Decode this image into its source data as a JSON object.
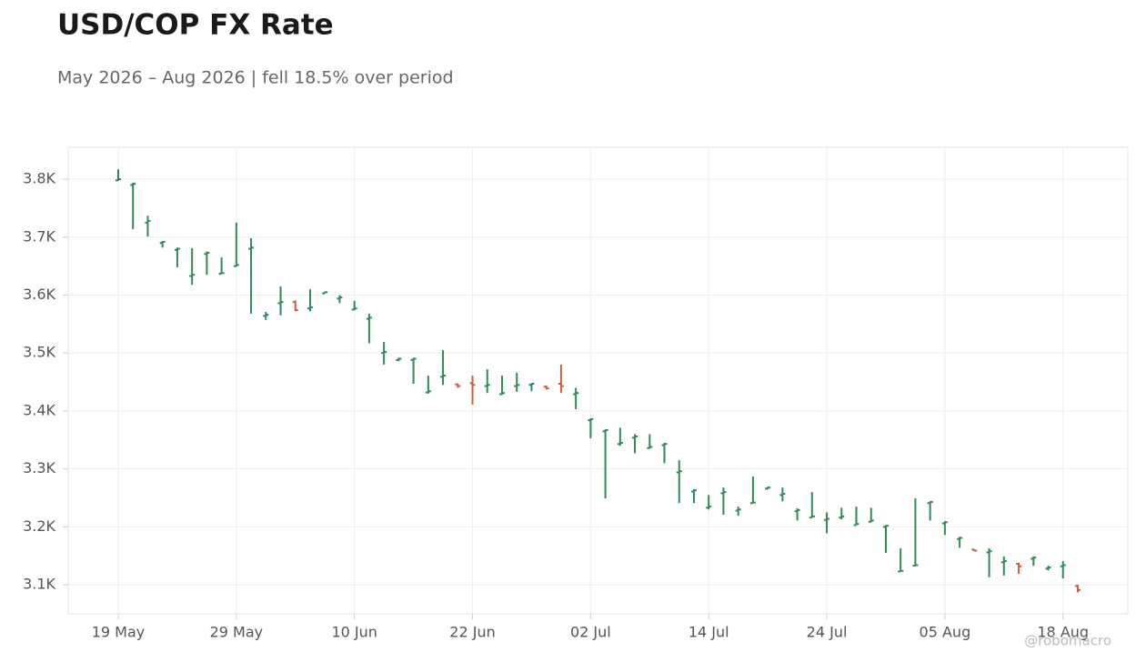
{
  "chart_data": {
    "type": "ohlc",
    "title": "USD/COP FX Rate",
    "subtitle": "May 2026 – Aug 2026 | fell 18.5% over period",
    "watermark": "@robomacro",
    "categories": [
      "19 May",
      null,
      null,
      null,
      null,
      null,
      null,
      null,
      "29 May",
      null,
      null,
      null,
      null,
      null,
      null,
      null,
      "10 Jun",
      null,
      null,
      null,
      null,
      null,
      null,
      null,
      "22 Jun",
      null,
      null,
      null,
      null,
      null,
      null,
      null,
      "02 Jul",
      null,
      null,
      null,
      null,
      null,
      null,
      null,
      "14 Jul",
      null,
      null,
      null,
      null,
      null,
      null,
      null,
      "24 Jul",
      null,
      null,
      null,
      null,
      null,
      null,
      null,
      "05 Aug",
      null,
      null,
      null,
      null,
      null,
      null,
      null,
      "18 Aug",
      null
    ],
    "open": [
      3798,
      3790,
      3725,
      3690,
      3678,
      3633,
      3671,
      3637,
      3650,
      3680,
      3564,
      3586,
      3588,
      3577,
      3603,
      3594,
      3575,
      3559,
      3500,
      3488,
      3488,
      3432,
      3459,
      3446,
      3448,
      3443,
      3429,
      3443,
      3445,
      3442,
      3447,
      3429,
      3384,
      3365,
      3343,
      3354,
      3336,
      3341,
      3294,
      3261,
      3233,
      3258,
      3228,
      3241,
      3266,
      3255,
      3227,
      3216,
      3212,
      3216,
      3203,
      3209,
      3200,
      3123,
      3133,
      3241,
      3206,
      3179,
      3161,
      3156,
      3139,
      3136,
      3145,
      3128,
      3132,
      3098
    ],
    "high": [
      3817,
      3794,
      3737,
      3693,
      3682,
      3681,
      3675,
      3665,
      3725,
      3698,
      3571,
      3615,
      3591,
      3610,
      3606,
      3600,
      3590,
      3568,
      3519,
      3492,
      3492,
      3461,
      3505,
      3447,
      3461,
      3472,
      3461,
      3466,
      3448,
      3444,
      3480,
      3440,
      3387,
      3368,
      3371,
      3360,
      3360,
      3345,
      3315,
      3265,
      3255,
      3268,
      3235,
      3287,
      3269,
      3268,
      3232,
      3260,
      3225,
      3233,
      3235,
      3233,
      3203,
      3163,
      3249,
      3244,
      3210,
      3183,
      3161,
      3163,
      3149,
      3138,
      3149,
      3133,
      3141,
      3100
    ],
    "low": [
      3797,
      3714,
      3701,
      3682,
      3648,
      3618,
      3635,
      3637,
      3649,
      3568,
      3557,
      3565,
      3572,
      3572,
      3603,
      3586,
      3574,
      3517,
      3480,
      3486,
      3447,
      3430,
      3445,
      3440,
      3411,
      3431,
      3428,
      3433,
      3434,
      3437,
      3431,
      3403,
      3353,
      3249,
      3340,
      3327,
      3335,
      3310,
      3241,
      3241,
      3230,
      3221,
      3219,
      3241,
      3265,
      3244,
      3211,
      3216,
      3189,
      3213,
      3203,
      3208,
      3155,
      3123,
      3133,
      3211,
      3186,
      3164,
      3158,
      3113,
      3116,
      3119,
      3133,
      3125,
      3111,
      3087
    ],
    "close": [
      3800,
      3792,
      3728,
      3692,
      3680,
      3635,
      3673,
      3638,
      3652,
      3682,
      3566,
      3588,
      3574,
      3579,
      3605,
      3596,
      3577,
      3561,
      3502,
      3490,
      3490,
      3434,
      3461,
      3443,
      3445,
      3445,
      3431,
      3445,
      3447,
      3439,
      3443,
      3431,
      3386,
      3367,
      3345,
      3356,
      3338,
      3343,
      3296,
      3263,
      3235,
      3260,
      3230,
      3242,
      3268,
      3257,
      3229,
      3218,
      3214,
      3218,
      3205,
      3211,
      3202,
      3124,
      3134,
      3243,
      3208,
      3181,
      3159,
      3158,
      3141,
      3132,
      3147,
      3130,
      3134,
      3091
    ],
    "increasing_color": "#2e8b57",
    "decreasing_color": "#c8603f",
    "ylim": [
      3050,
      3855
    ],
    "yticks": [
      {
        "value": 3100,
        "label": "3.1K"
      },
      {
        "value": 3200,
        "label": "3.2K"
      },
      {
        "value": 3300,
        "label": "3.3K"
      },
      {
        "value": 3400,
        "label": "3.4K"
      },
      {
        "value": 3500,
        "label": "3.5K"
      },
      {
        "value": 3600,
        "label": "3.6K"
      },
      {
        "value": 3700,
        "label": "3.7K"
      },
      {
        "value": 3800,
        "label": "3.8K"
      }
    ],
    "grid": true
  }
}
